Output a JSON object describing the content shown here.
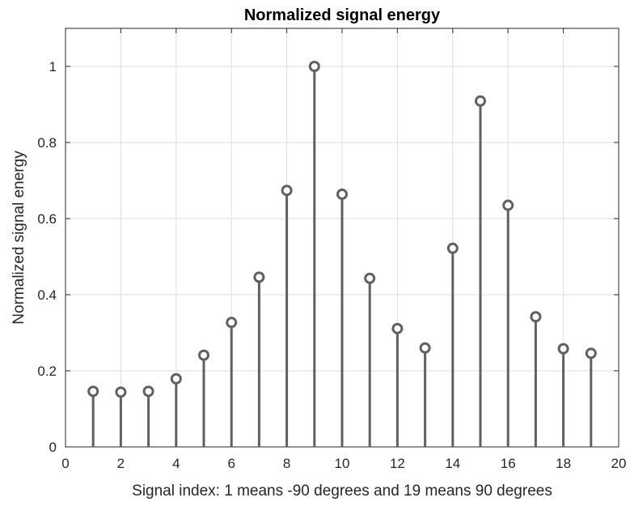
{
  "chart_data": {
    "type": "stem",
    "title": "Normalized signal energy",
    "xlabel": "Signal index: 1 means -90 degrees and 19 means 90 degrees",
    "ylabel": "Normalized signal energy",
    "xlim": [
      0,
      20
    ],
    "ylim": [
      0,
      1.1
    ],
    "xticks": [
      0,
      2,
      4,
      6,
      8,
      10,
      12,
      14,
      16,
      18,
      20
    ],
    "yticks": [
      0,
      0.2,
      0.4,
      0.6,
      0.8,
      1
    ],
    "ytick_labels": [
      "0",
      "0.2",
      "0.4",
      "0.6",
      "0.8",
      "1"
    ],
    "grid": true,
    "color": "#606060",
    "x": [
      1,
      2,
      3,
      4,
      5,
      6,
      7,
      8,
      9,
      10,
      11,
      12,
      13,
      14,
      15,
      16,
      17,
      18,
      19
    ],
    "y": [
      0.146,
      0.144,
      0.146,
      0.179,
      0.241,
      0.327,
      0.446,
      0.674,
      1.0,
      0.664,
      0.443,
      0.311,
      0.26,
      0.522,
      0.909,
      0.635,
      0.342,
      0.258,
      0.246
    ]
  }
}
